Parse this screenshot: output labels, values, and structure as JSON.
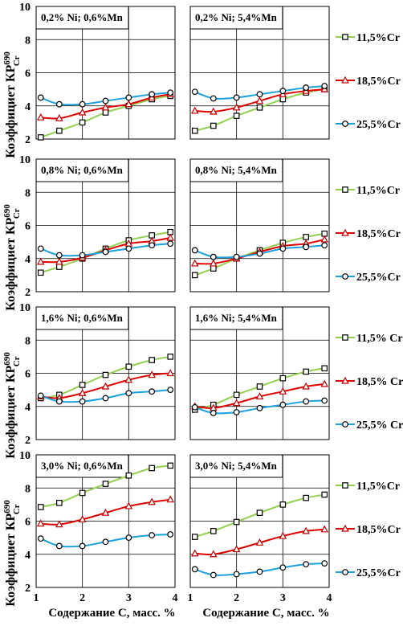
{
  "chart_data": {
    "type": "line",
    "xlim": [
      1,
      4
    ],
    "ylim": [
      2,
      10
    ],
    "xticks": [
      "1",
      "2",
      "3",
      "4"
    ],
    "yticks": [
      "2",
      "4",
      "6",
      "8",
      "10"
    ],
    "xlabel": "Содержание С, масс. %",
    "ylabel": "Коэффициет КР",
    "ylabel_sup": "690",
    "ylabel_sub": "Cr",
    "grid": true,
    "legend_position": "right",
    "series_style": [
      {
        "name": "11,5%Cr",
        "color": "#92D050",
        "marker": "square"
      },
      {
        "name": "18,5%Cr",
        "color": "#E00000",
        "marker": "triangle"
      },
      {
        "name": "25,5%Cr",
        "color": "#1AA0DC",
        "marker": "circle"
      }
    ],
    "rows": [
      {
        "legend": [
          "11,5%Cr",
          "18,5%Cr",
          "25,5%Cr"
        ],
        "panels": [
          {
            "title": "0,2% Ni; 0,6%Mn",
            "x": [
              1.1,
              1.5,
              2.0,
              2.5,
              3.0,
              3.5,
              3.9
            ],
            "series": [
              {
                "name": "11,5%Cr",
                "values": [
                  2.1,
                  2.5,
                  3.0,
                  3.6,
                  4.0,
                  4.4,
                  4.6
                ]
              },
              {
                "name": "18,5%Cr",
                "values": [
                  3.3,
                  3.25,
                  3.6,
                  3.9,
                  4.1,
                  4.5,
                  4.7
                ]
              },
              {
                "name": "25,5%Cr",
                "values": [
                  4.5,
                  4.1,
                  4.1,
                  4.3,
                  4.5,
                  4.7,
                  4.8
                ]
              }
            ]
          },
          {
            "title": "0,2% Ni; 5,4%Mn",
            "x": [
              1.1,
              1.5,
              2.0,
              2.5,
              3.0,
              3.5,
              3.9
            ],
            "series": [
              {
                "name": "11,5%Cr",
                "values": [
                  2.5,
                  2.8,
                  3.4,
                  3.9,
                  4.4,
                  4.8,
                  5.0
                ]
              },
              {
                "name": "18,5%Cr",
                "values": [
                  3.7,
                  3.65,
                  3.9,
                  4.3,
                  4.7,
                  4.9,
                  5.0
                ]
              },
              {
                "name": "25,5%Cr",
                "values": [
                  4.85,
                  4.45,
                  4.5,
                  4.7,
                  4.9,
                  5.1,
                  5.2
                ]
              }
            ]
          }
        ]
      },
      {
        "legend": [
          "11,5%Cr",
          "18,5%Cr",
          "25,5%Cr"
        ],
        "panels": [
          {
            "title": "0,8% Ni; 0,6%Mn",
            "x": [
              1.1,
              1.5,
              2.0,
              2.5,
              3.0,
              3.5,
              3.9
            ],
            "series": [
              {
                "name": "11,5%Cr",
                "values": [
                  3.15,
                  3.5,
                  4.0,
                  4.6,
                  5.1,
                  5.4,
                  5.6
                ]
              },
              {
                "name": "18,5%Cr",
                "values": [
                  3.8,
                  3.8,
                  4.05,
                  4.5,
                  4.9,
                  5.05,
                  5.25
                ]
              },
              {
                "name": "25,5%Cr",
                "values": [
                  4.6,
                  4.2,
                  4.2,
                  4.4,
                  4.6,
                  4.8,
                  4.9
                ]
              }
            ]
          },
          {
            "title": "0,8% Ni; 5,4%Mn",
            "x": [
              1.1,
              1.5,
              2.0,
              2.5,
              3.0,
              3.5,
              3.9
            ],
            "series": [
              {
                "name": "11,5%Cr",
                "values": [
                  3.0,
                  3.4,
                  4.0,
                  4.5,
                  4.95,
                  5.3,
                  5.5
                ]
              },
              {
                "name": "18,5%Cr",
                "values": [
                  3.7,
                  3.7,
                  4.0,
                  4.4,
                  4.75,
                  4.9,
                  5.15
                ]
              },
              {
                "name": "25,5%Cr",
                "values": [
                  4.5,
                  4.1,
                  4.1,
                  4.3,
                  4.6,
                  4.7,
                  4.8
                ]
              }
            ]
          }
        ]
      },
      {
        "legend": [
          "11,5% Cr",
          "18,5% Cr",
          "25,5% Cr"
        ],
        "panels": [
          {
            "title": "1,6% Ni; 0,6%Mn",
            "x": [
              1.1,
              1.5,
              2.0,
              2.5,
              3.0,
              3.5,
              3.9
            ],
            "series": [
              {
                "name": "11,5% Cr",
                "values": [
                  4.5,
                  4.7,
                  5.3,
                  5.9,
                  6.4,
                  6.8,
                  7.0
                ]
              },
              {
                "name": "18,5% Cr",
                "values": [
                  4.6,
                  4.5,
                  4.8,
                  5.2,
                  5.6,
                  5.9,
                  6.0
                ]
              },
              {
                "name": "25,5% Cr",
                "values": [
                  4.65,
                  4.3,
                  4.3,
                  4.5,
                  4.8,
                  4.9,
                  5.0
                ]
              }
            ]
          },
          {
            "title": "1,6% Ni; 5,4%Mn",
            "x": [
              1.1,
              1.5,
              2.0,
              2.5,
              3.0,
              3.5,
              3.9
            ],
            "series": [
              {
                "name": "11,5% Cr",
                "values": [
                  3.8,
                  4.1,
                  4.7,
                  5.2,
                  5.7,
                  6.1,
                  6.3
                ]
              },
              {
                "name": "18,5% Cr",
                "values": [
                  4.0,
                  3.9,
                  4.2,
                  4.6,
                  4.9,
                  5.2,
                  5.35
                ]
              },
              {
                "name": "25,5% Cr",
                "values": [
                  3.95,
                  3.6,
                  3.65,
                  3.9,
                  4.1,
                  4.3,
                  4.35
                ]
              }
            ]
          }
        ]
      },
      {
        "legend": [
          "11,5%Cr",
          "18,5%Cr",
          "25,5%Cr"
        ],
        "panels": [
          {
            "title": "3,0% Ni; 0,6%Mn",
            "x": [
              1.1,
              1.5,
              2.0,
              2.5,
              3.0,
              3.5,
              3.9
            ],
            "series": [
              {
                "name": "11,5%Cr",
                "values": [
                  6.85,
                  7.1,
                  7.7,
                  8.25,
                  8.75,
                  9.2,
                  9.35
                ]
              },
              {
                "name": "18,5%Cr",
                "values": [
                  5.85,
                  5.8,
                  6.1,
                  6.5,
                  6.9,
                  7.15,
                  7.3
                ]
              },
              {
                "name": "25,5%Cr",
                "values": [
                  4.95,
                  4.5,
                  4.5,
                  4.75,
                  5.0,
                  5.15,
                  5.2
                ]
              }
            ]
          },
          {
            "title": "3,0% Ni; 5,4%Mn",
            "x": [
              1.1,
              1.5,
              2.0,
              2.5,
              3.0,
              3.5,
              3.9
            ],
            "series": [
              {
                "name": "11,5%Cr",
                "values": [
                  5.05,
                  5.4,
                  5.95,
                  6.5,
                  7.0,
                  7.4,
                  7.6
                ]
              },
              {
                "name": "18,5%Cr",
                "values": [
                  4.05,
                  4.0,
                  4.3,
                  4.7,
                  5.1,
                  5.4,
                  5.5
                ]
              },
              {
                "name": "25,5%Cr",
                "values": [
                  3.1,
                  2.75,
                  2.8,
                  2.95,
                  3.2,
                  3.4,
                  3.45
                ]
              }
            ]
          }
        ]
      }
    ]
  }
}
